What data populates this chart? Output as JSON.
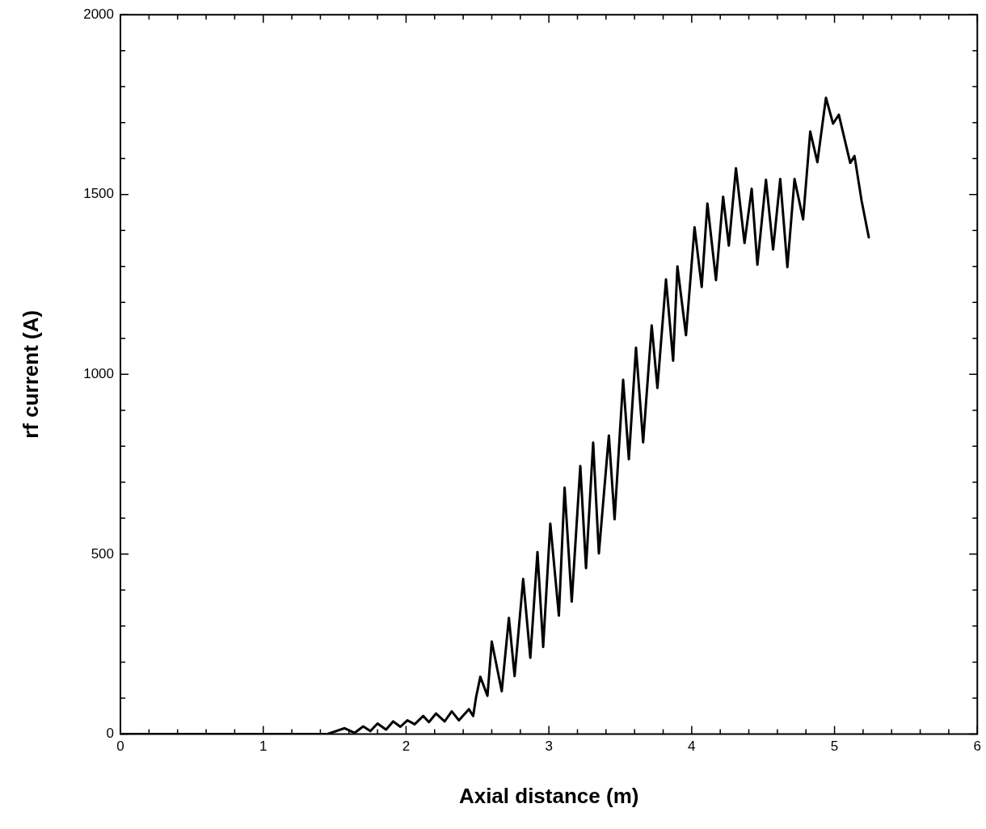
{
  "chart_data": {
    "type": "line",
    "xlabel": "Axial distance (m)",
    "ylabel": "rf current (A)",
    "xlim": [
      0,
      6
    ],
    "ylim": [
      0,
      2000
    ],
    "xticks": [
      0,
      1,
      2,
      3,
      4,
      5,
      6
    ],
    "yticks": [
      0,
      500,
      1000,
      1500,
      2000
    ],
    "grid": false,
    "legend": false,
    "marker": "none",
    "line_style": "solid",
    "series": [
      {
        "color": "#000000",
        "x": [
          0,
          1.45,
          1.57,
          1.64,
          1.7,
          1.75,
          1.8,
          1.86,
          1.91,
          1.96,
          2.01,
          2.06,
          2.12,
          2.16,
          2.21,
          2.27,
          2.32,
          2.37,
          2.44,
          2.47,
          2.49,
          2.52,
          2.57,
          2.6,
          2.67,
          2.72,
          2.76,
          2.82,
          2.87,
          2.92,
          2.96,
          3.01,
          3.07,
          3.11,
          3.16,
          3.22,
          3.26,
          3.31,
          3.35,
          3.42,
          3.46,
          3.52,
          3.56,
          3.61,
          3.66,
          3.72,
          3.76,
          3.82,
          3.87,
          3.9,
          3.96,
          4.02,
          4.07,
          4.11,
          4.17,
          4.22,
          4.26,
          4.31,
          4.37,
          4.42,
          4.46,
          4.52,
          4.57,
          4.62,
          4.67,
          4.72,
          4.78,
          4.83,
          4.88,
          4.94,
          4.99,
          5.03,
          5.11,
          5.14,
          5.19,
          5.24
        ],
        "values": [
          0,
          0,
          16,
          3,
          21,
          8,
          29,
          12,
          35,
          20,
          38,
          27,
          50,
          33,
          57,
          35,
          63,
          38,
          69,
          50,
          102,
          159,
          106,
          257,
          119,
          323,
          161,
          431,
          212,
          506,
          242,
          585,
          329,
          685,
          368,
          745,
          461,
          810,
          502,
          830,
          597,
          985,
          764,
          1074,
          811,
          1136,
          962,
          1264,
          1038,
          1300,
          1109,
          1409,
          1243,
          1475,
          1262,
          1494,
          1358,
          1573,
          1365,
          1516,
          1305,
          1541,
          1347,
          1543,
          1298,
          1543,
          1431,
          1675,
          1590,
          1769,
          1697,
          1722,
          1588,
          1607,
          1482,
          1381
        ]
      }
    ]
  }
}
